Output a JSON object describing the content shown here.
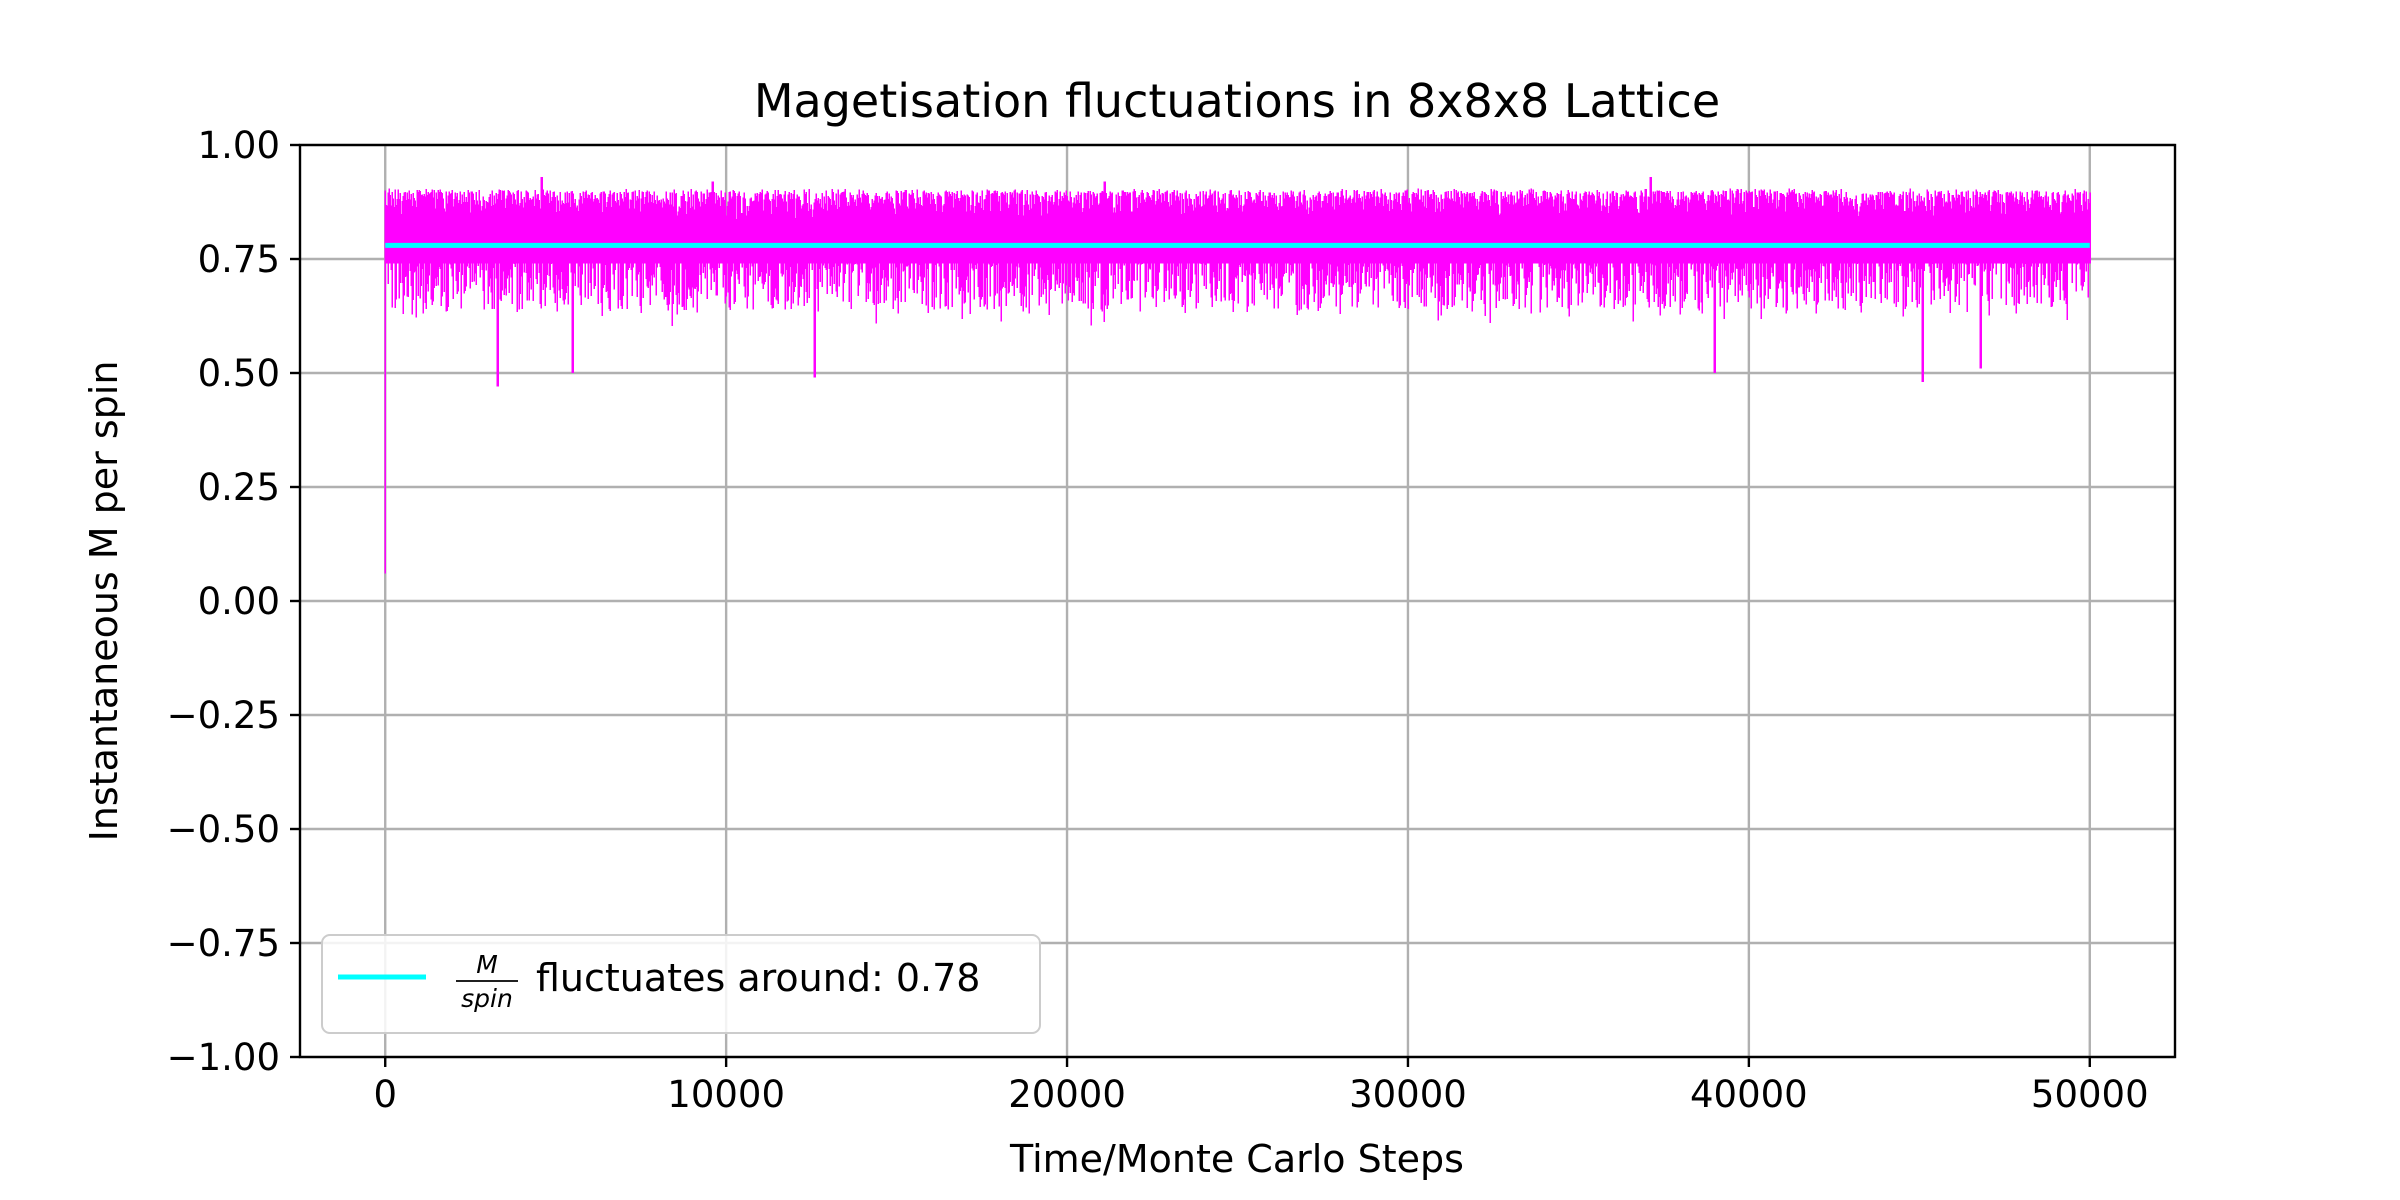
{
  "chart_data": {
    "type": "line",
    "title": "Magetisation fluctuations in 8x8x8 Lattice",
    "xlabel": "Time/Monte Carlo Steps",
    "ylabel": "Instantaneous M per spin",
    "xlim": [
      -2500,
      52500
    ],
    "ylim": [
      -1.0,
      1.0
    ],
    "xticks": [
      0,
      10000,
      20000,
      30000,
      40000,
      50000
    ],
    "xtick_labels": [
      "0",
      "10000",
      "20000",
      "30000",
      "40000",
      "50000"
    ],
    "yticks": [
      1.0,
      0.75,
      0.5,
      0.25,
      0.0,
      -0.25,
      -0.5,
      -0.75,
      -1.0
    ],
    "ytick_labels": [
      "1.00",
      "0.75",
      "0.50",
      "0.25",
      "0.00",
      "−0.25",
      "−0.50",
      "−0.75",
      "−1.00"
    ],
    "grid": true,
    "legend_placement": "lower-left",
    "series": [
      {
        "kind": "fluctuation",
        "color": "#ff00ff",
        "x_range": [
          0,
          50000
        ],
        "mean": 0.78,
        "initial_value": 0.06,
        "typical_max": 0.9,
        "typical_min": 0.64,
        "notable_minima": [
          {
            "x": 3300,
            "y": 0.47
          },
          {
            "x": 5500,
            "y": 0.5
          },
          {
            "x": 12600,
            "y": 0.49
          },
          {
            "x": 39000,
            "y": 0.5
          },
          {
            "x": 45100,
            "y": 0.48
          },
          {
            "x": 46800,
            "y": 0.51
          }
        ],
        "notable_maxima": [
          {
            "x": 4600,
            "y": 0.93
          },
          {
            "x": 9600,
            "y": 0.92
          },
          {
            "x": 21100,
            "y": 0.92
          },
          {
            "x": 37100,
            "y": 0.93
          }
        ]
      },
      {
        "kind": "mean",
        "color": "#00ffff",
        "x_range": [
          0,
          50000
        ],
        "value": 0.78
      }
    ],
    "legend": {
      "fraction_numerator": "M",
      "fraction_denominator": "spin",
      "text": "fluctuates around: 0.78",
      "color": "#00ffff"
    }
  }
}
